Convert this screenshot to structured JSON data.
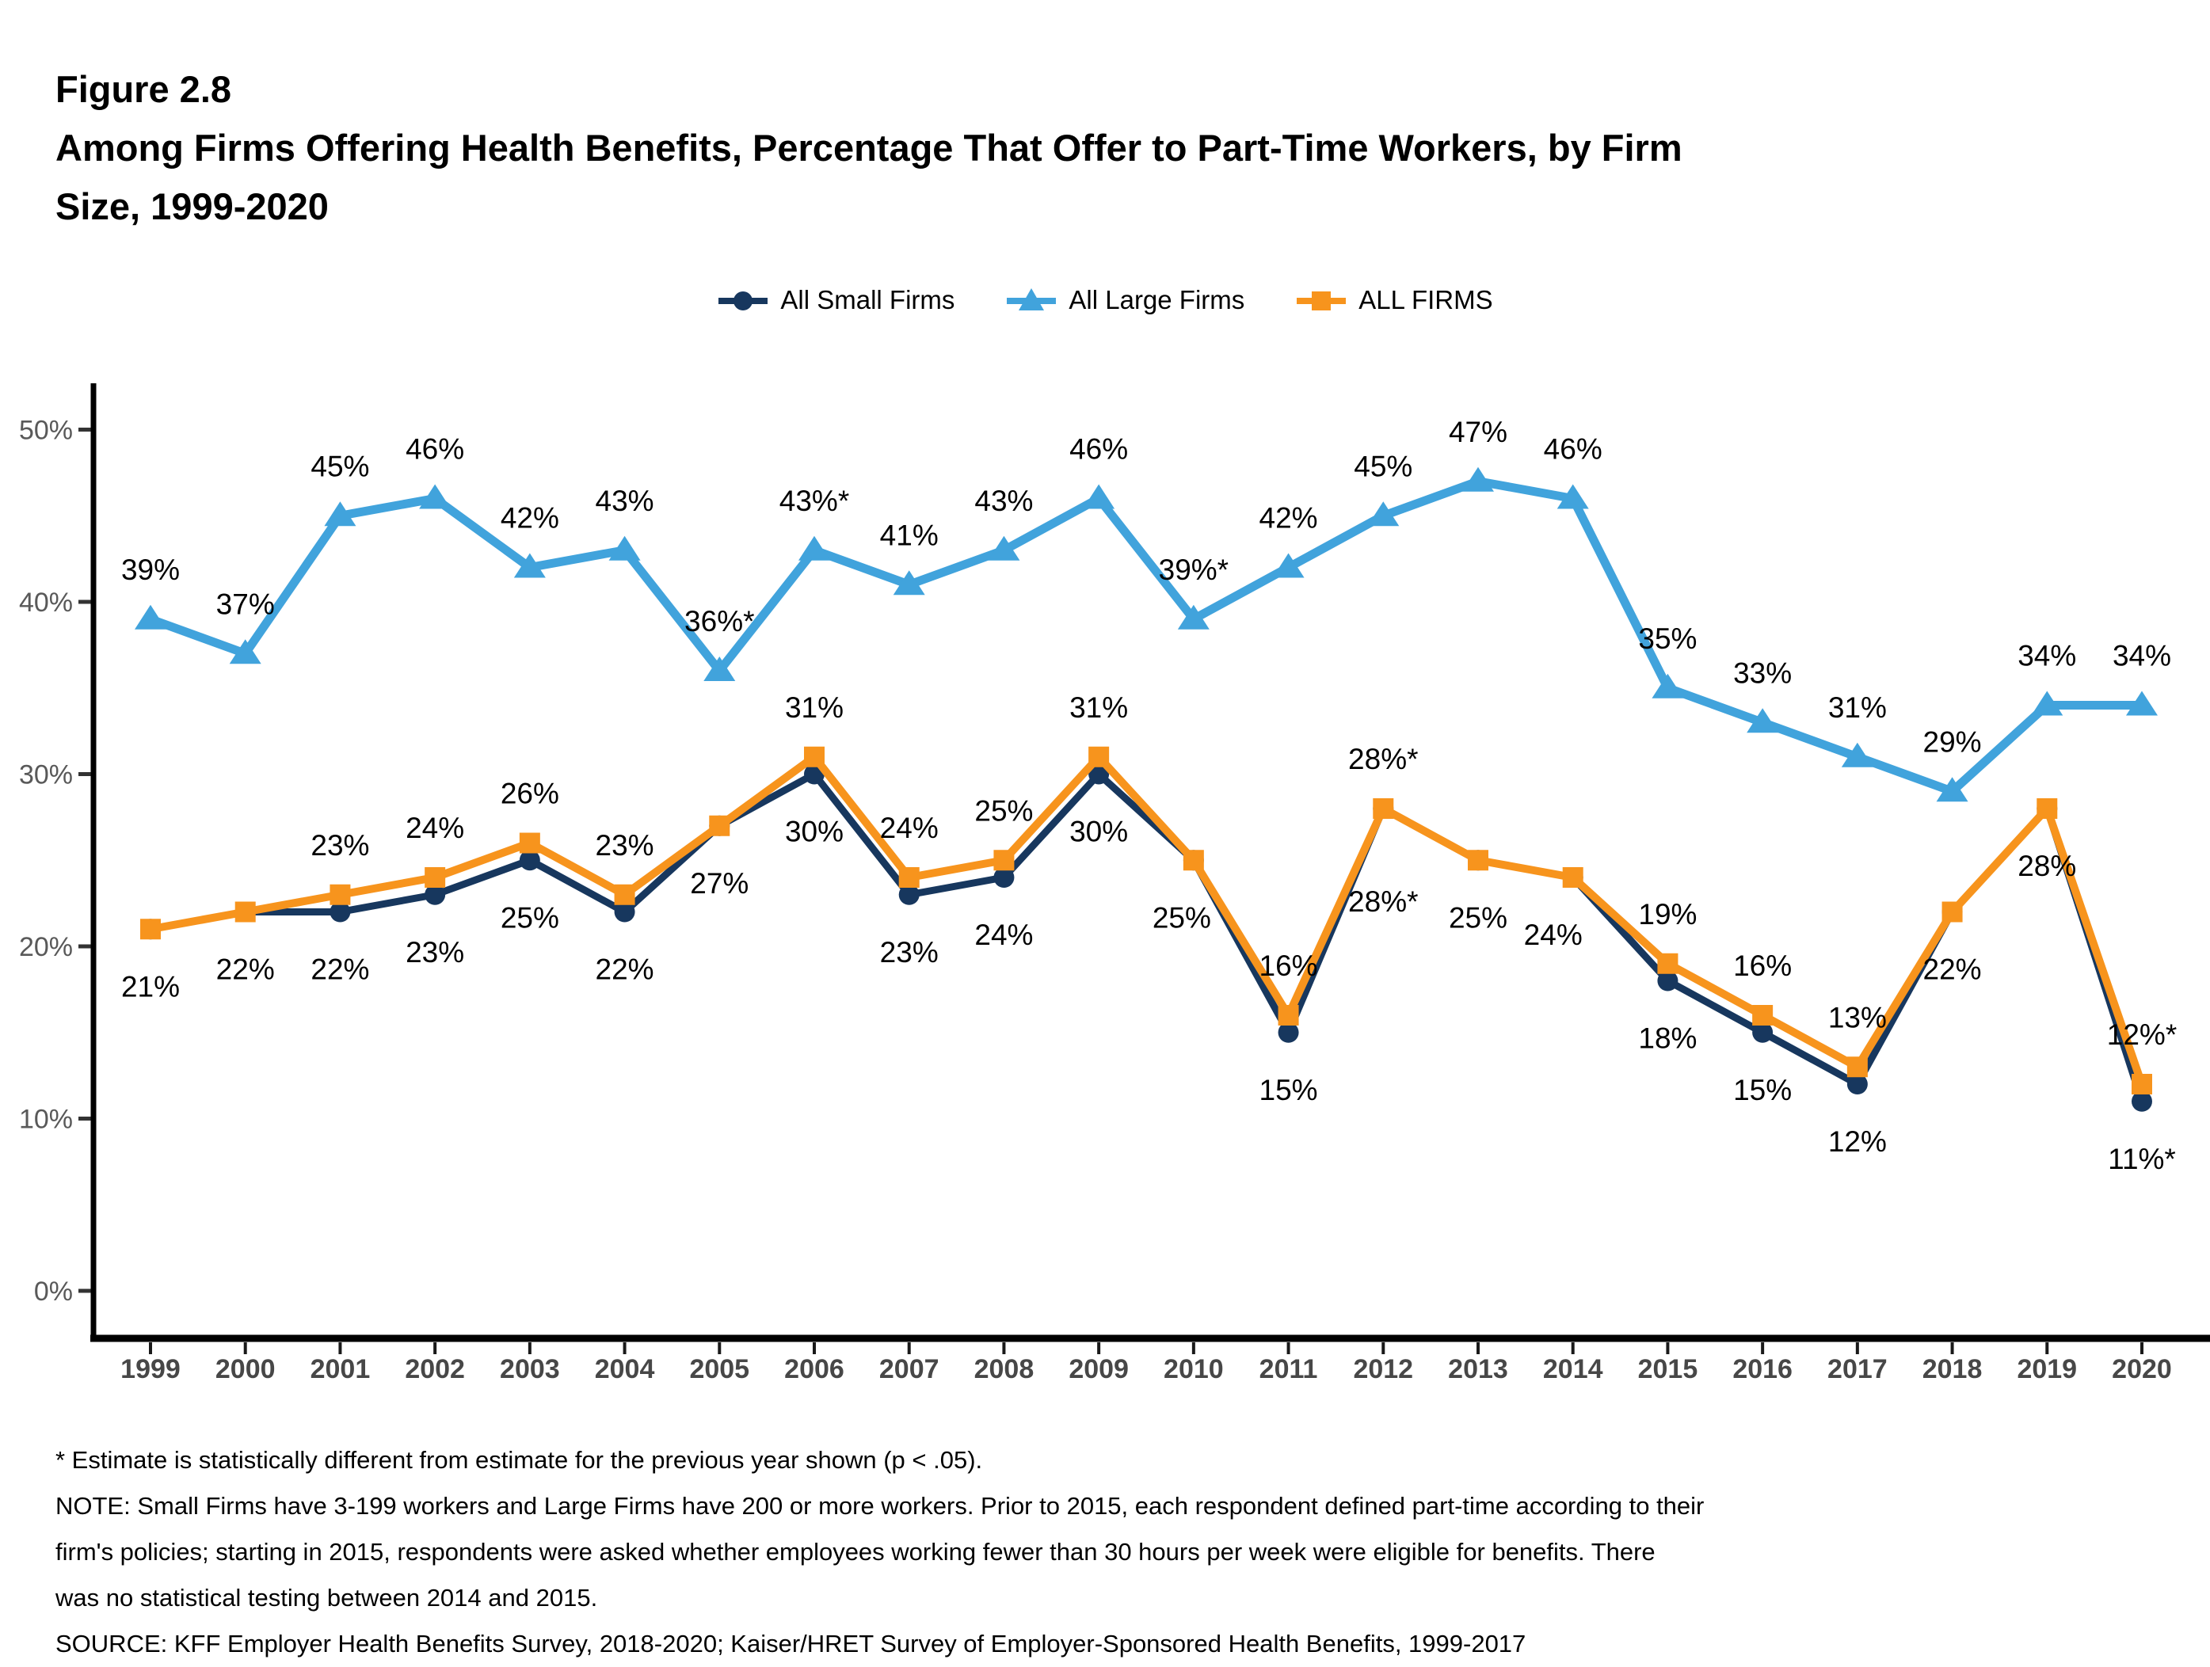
{
  "header": {
    "figure_label": "Figure 2.8",
    "title_lines": [
      "Among Firms Offering Health Benefits, Percentage That Offer to Part-Time Workers, by Firm",
      "Size, 1999-2020"
    ]
  },
  "legend": [
    {
      "label": "All Small Firms",
      "color": "#17375E",
      "marker": "circle-icon"
    },
    {
      "label": "All Large Firms",
      "color": "#41A3DC",
      "marker": "triangle-icon"
    },
    {
      "label": "ALL FIRMS",
      "color": "#F7941D",
      "marker": "square-icon"
    }
  ],
  "chart_data": {
    "type": "line",
    "title": "Among Firms Offering Health Benefits, Percentage That Offer to Part-Time Workers, by Firm Size, 1999-2020",
    "xlabel": "",
    "ylabel": "",
    "x": [
      "1999",
      "2000",
      "2001",
      "2002",
      "2003",
      "2004",
      "2005",
      "2006",
      "2007",
      "2008",
      "2009",
      "2010",
      "2011",
      "2012",
      "2013",
      "2014",
      "2015",
      "2016",
      "2017",
      "2018",
      "2019",
      "2020"
    ],
    "y_ticks": {
      "values": [
        0,
        10,
        20,
        30,
        40,
        50
      ],
      "labels": [
        "0%",
        "10%",
        "20%",
        "30%",
        "40%",
        "50%"
      ]
    },
    "ylim": [
      0,
      52
    ],
    "grid": false,
    "legend_position": "top",
    "series": [
      {
        "name": "All Small Firms",
        "color": "#17375E",
        "marker": "circle",
        "values": [
          21,
          22,
          22,
          23,
          25,
          22,
          27,
          30,
          23,
          24,
          30,
          25,
          15,
          28,
          25,
          24,
          18,
          15,
          12,
          22,
          28,
          11
        ],
        "labels": [
          {
            "t": "21%",
            "p": "b"
          },
          {
            "t": "22%",
            "p": "b"
          },
          {
            "t": "22%",
            "p": "b"
          },
          {
            "t": "23%",
            "p": "b"
          },
          {
            "t": "25%",
            "p": "b"
          },
          {
            "t": "22%",
            "p": "b"
          },
          {
            "t": "27%",
            "p": "b"
          },
          {
            "t": "30%",
            "p": "b"
          },
          {
            "t": "23%",
            "p": "b"
          },
          {
            "t": "24%",
            "p": "b"
          },
          {
            "t": "30%",
            "p": "b"
          },
          {
            "t": "25%",
            "p": "b",
            "dx": -15
          },
          {
            "t": "15%",
            "p": "b"
          },
          {
            "t": "28%*",
            "p": "b",
            "dy": 45
          },
          {
            "t": "25%",
            "p": "b"
          },
          {
            "t": "24%",
            "p": "b",
            "dx": -25
          },
          {
            "t": "18%",
            "p": "b"
          },
          {
            "t": "15%",
            "p": "b"
          },
          {
            "t": "12%",
            "p": "b"
          },
          {
            "t": "22%",
            "p": "b"
          },
          {
            "t": "28%",
            "p": "b"
          },
          {
            "t": "11%*",
            "p": "b"
          }
        ]
      },
      {
        "name": "All Large Firms",
        "color": "#41A3DC",
        "marker": "triangle",
        "values": [
          39,
          37,
          45,
          46,
          42,
          43,
          36,
          43,
          41,
          43,
          46,
          39,
          42,
          45,
          47,
          46,
          35,
          33,
          31,
          29,
          34,
          34
        ],
        "labels": [
          {
            "t": "39%",
            "p": "a"
          },
          {
            "t": "37%",
            "p": "a"
          },
          {
            "t": "45%",
            "p": "a"
          },
          {
            "t": "46%",
            "p": "a"
          },
          {
            "t": "42%",
            "p": "a"
          },
          {
            "t": "43%",
            "p": "a"
          },
          {
            "t": "36%*",
            "p": "a"
          },
          {
            "t": "43%*",
            "p": "a"
          },
          {
            "t": "41%",
            "p": "a"
          },
          {
            "t": "43%",
            "p": "a"
          },
          {
            "t": "46%",
            "p": "a"
          },
          {
            "t": "39%*",
            "p": "a"
          },
          {
            "t": "42%",
            "p": "a"
          },
          {
            "t": "45%",
            "p": "a"
          },
          {
            "t": "47%",
            "p": "a"
          },
          {
            "t": "46%",
            "p": "a"
          },
          {
            "t": "35%",
            "p": "a"
          },
          {
            "t": "33%",
            "p": "a"
          },
          {
            "t": "31%",
            "p": "a"
          },
          {
            "t": "29%",
            "p": "a"
          },
          {
            "t": "34%",
            "p": "a"
          },
          {
            "t": "34%",
            "p": "a"
          }
        ]
      },
      {
        "name": "ALL FIRMS",
        "color": "#F7941D",
        "marker": "square",
        "values": [
          21,
          22,
          23,
          24,
          26,
          23,
          27,
          31,
          24,
          25,
          31,
          25,
          16,
          28,
          25,
          24,
          19,
          16,
          13,
          22,
          28,
          12
        ],
        "labels": [
          null,
          null,
          {
            "t": "23%",
            "p": "a"
          },
          {
            "t": "24%",
            "p": "a"
          },
          {
            "t": "26%",
            "p": "a"
          },
          {
            "t": "23%",
            "p": "a"
          },
          null,
          {
            "t": "31%",
            "p": "a"
          },
          {
            "t": "24%",
            "p": "a"
          },
          {
            "t": "25%",
            "p": "a"
          },
          {
            "t": "31%",
            "p": "a"
          },
          null,
          {
            "t": "16%",
            "p": "a"
          },
          {
            "t": "28%*",
            "p": "a"
          },
          null,
          null,
          {
            "t": "19%",
            "p": "a"
          },
          {
            "t": "16%",
            "p": "a"
          },
          {
            "t": "13%",
            "p": "a"
          },
          null,
          null,
          {
            "t": "12%*",
            "p": "a"
          }
        ]
      }
    ]
  },
  "footnotes": {
    "significance": "* Estimate is statistically different from estimate for the previous year shown (p < .05).",
    "note_lines": [
      "NOTE: Small Firms have 3-199 workers and Large Firms have 200 or more workers. Prior to 2015, each respondent defined part-time according to their",
      "firm's policies; starting in 2015, respondents were asked whether employees working fewer than 30 hours per week were eligible for benefits. There",
      "was no statistical testing between 2014 and 2015."
    ],
    "source": "SOURCE: KFF Employer Health Benefits Survey, 2018-2020; Kaiser/HRET Survey of Employer-Sponsored Health Benefits, 1999-2017"
  }
}
